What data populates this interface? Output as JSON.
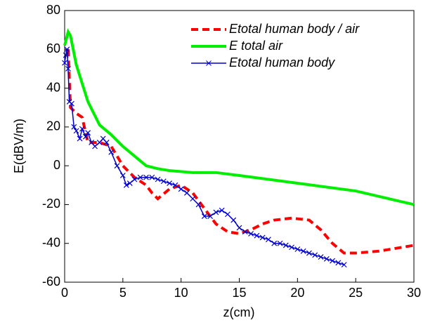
{
  "chart_data": {
    "type": "line",
    "xlabel": "z(cm)",
    "ylabel": "E(dBV/m)",
    "xlim": [
      0,
      30
    ],
    "xticks": [
      0,
      5,
      10,
      15,
      20,
      25,
      30
    ],
    "ylim": [
      -60,
      80
    ],
    "yticks": [
      -60,
      -40,
      -20,
      0,
      20,
      40,
      60,
      80
    ],
    "legend": "upper right",
    "series": [
      {
        "name": "Etotal human body / air",
        "color": "#ff0000",
        "dash": "dashed",
        "x": [
          0.3,
          0.5,
          1,
          1.5,
          2,
          3,
          4,
          5,
          6,
          6.5,
          7,
          7.5,
          8,
          9,
          10,
          11,
          12,
          13,
          14,
          15,
          16,
          17,
          18,
          19.5,
          21,
          22,
          23,
          24,
          25,
          27,
          29,
          30
        ],
        "values": [
          60,
          30,
          27,
          25,
          12,
          12,
          10,
          0,
          -6,
          -8,
          -10,
          -14,
          -17,
          -12,
          -10,
          -14,
          -22,
          -30,
          -34,
          -35,
          -33,
          -30,
          -28,
          -27,
          -28,
          -33,
          -40,
          -45,
          -45,
          -44,
          -42,
          -41
        ]
      },
      {
        "name": "E total air",
        "color": "#00ee00",
        "dash": "solid",
        "x": [
          0,
          0.3,
          0.5,
          1,
          2,
          3,
          4,
          5,
          6,
          7,
          8,
          9,
          10,
          11,
          13,
          15,
          20,
          25,
          30
        ],
        "values": [
          62,
          69,
          67,
          52,
          33,
          21,
          16,
          10,
          5,
          0,
          -1.5,
          -2.5,
          -3,
          -3.5,
          -3.5,
          -5,
          -9,
          -13,
          -20
        ]
      },
      {
        "name": "Etotal human body",
        "color": "#0000cc",
        "dash": "solid",
        "marker": "x",
        "x": [
          0,
          0.1,
          0.2,
          0.3,
          0.4,
          0.6,
          0.8,
          1,
          1.3,
          1.5,
          1.8,
          2,
          2.3,
          2.6,
          3,
          3.3,
          3.6,
          4,
          4.5,
          5,
          5.3,
          5.6,
          6,
          6.5,
          7,
          7.5,
          8,
          8.5,
          9,
          9.5,
          10,
          10.5,
          11,
          11.5,
          12,
          12.5,
          13,
          13.5,
          14,
          14.5,
          15,
          15.5,
          16,
          16.5,
          17,
          17.5,
          18,
          18.5,
          19,
          19.5,
          20,
          20.5,
          21,
          21.5,
          22,
          22.5,
          23,
          23.5,
          24
        ],
        "values": [
          53,
          57,
          60,
          50,
          33,
          32,
          20,
          18,
          14,
          19,
          15,
          17,
          12,
          10,
          12,
          14,
          12,
          7,
          0,
          -5,
          -10,
          -9,
          -7,
          -6,
          -6,
          -6,
          -7,
          -8,
          -9,
          -10,
          -12,
          -14,
          -17,
          -20,
          -26,
          -26,
          -24,
          -23,
          -25,
          -28,
          -32,
          -34,
          -35,
          -36,
          -37,
          -38,
          -40,
          -40,
          -41,
          -42,
          -43,
          -44,
          -45,
          -46,
          -47,
          -48,
          -49,
          -50,
          -51
        ]
      }
    ]
  }
}
